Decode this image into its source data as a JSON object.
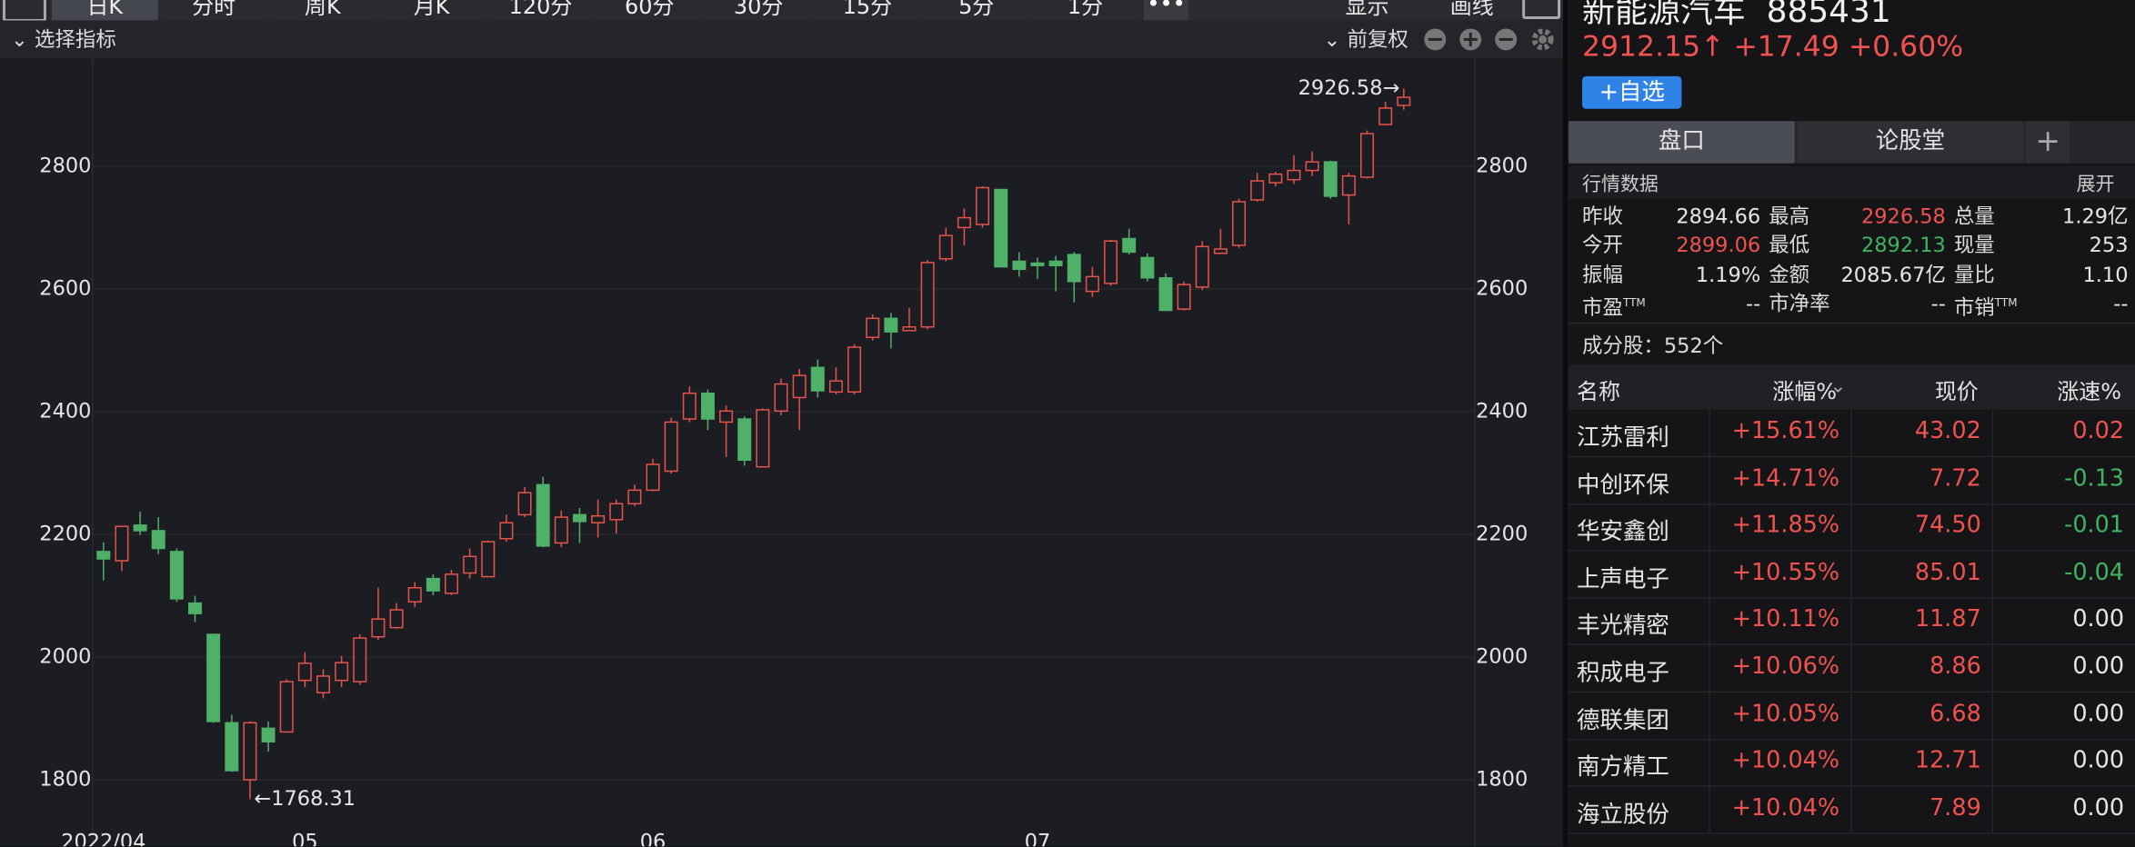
{
  "toolbar": {
    "tabs": [
      "日K",
      "分时",
      "周K",
      "月K",
      "120分",
      "60分",
      "30分",
      "15分",
      "5分",
      "1分"
    ],
    "right": [
      "显示",
      "画线"
    ]
  },
  "indicator_select": "选择指标",
  "adjust": "前复权",
  "chart_data": {
    "type": "candlestick",
    "categories": [
      "2022/04",
      null,
      null,
      null,
      null,
      null,
      null,
      null,
      null,
      null,
      null,
      "05",
      null,
      null,
      null,
      null,
      null,
      null,
      null,
      null,
      null,
      null,
      null,
      null,
      null,
      null,
      null,
      null,
      null,
      null,
      "06",
      null,
      null,
      null,
      null,
      null,
      null,
      null,
      null,
      null,
      null,
      null,
      null,
      null,
      null,
      null,
      null,
      null,
      null,
      null,
      null,
      "07",
      null,
      null,
      null,
      null,
      null,
      null,
      null,
      null,
      null,
      null,
      null,
      null,
      null,
      null,
      null,
      null,
      null,
      null,
      null,
      null
    ],
    "open": [
      2172,
      2157,
      2215,
      2206,
      2172,
      2088,
      2037,
      1893,
      1800,
      1884,
      1878,
      1962,
      1942,
      1962,
      1960,
      2033,
      2048,
      2090,
      2128,
      2104,
      2137,
      2131,
      2193,
      2232,
      2281,
      2186,
      2232,
      2219,
      2224,
      2250,
      2272,
      2303,
      2388,
      2430,
      2383,
      2388,
      2310,
      2401,
      2423,
      2472,
      2432,
      2432,
      2521,
      2552,
      2532,
      2538,
      2649,
      2700,
      2705,
      2762,
      2645,
      2642,
      2645,
      2656,
      2596,
      2609,
      2682,
      2651,
      2618,
      2567,
      2603,
      2658,
      2671,
      2745,
      2773,
      2778,
      2793,
      2807,
      2753,
      2782,
      2868,
      2899.06
    ],
    "high": [
      2187,
      2214,
      2237,
      2228,
      2177,
      2100,
      2037,
      1906,
      1895,
      1895,
      1964,
      2008,
      1980,
      2002,
      2037,
      2113,
      2088,
      2122,
      2135,
      2142,
      2177,
      2190,
      2232,
      2277,
      2294,
      2239,
      2243,
      2257,
      2257,
      2281,
      2323,
      2390,
      2441,
      2436,
      2410,
      2392,
      2405,
      2454,
      2470,
      2485,
      2472,
      2510,
      2558,
      2561,
      2569,
      2647,
      2700,
      2731,
      2767,
      2762,
      2660,
      2651,
      2654,
      2660,
      2636,
      2680,
      2698,
      2658,
      2625,
      2612,
      2678,
      2698,
      2747,
      2789,
      2791,
      2818,
      2824,
      2809,
      2789,
      2858,
      2905,
      2926.58
    ],
    "low": [
      2125,
      2140,
      2199,
      2168,
      2090,
      2057,
      1893,
      1813,
      1768.31,
      1846,
      1877,
      1951,
      1933,
      1951,
      1955,
      2028,
      2046,
      2081,
      2101,
      2101,
      2128,
      2130,
      2188,
      2228,
      2179,
      2179,
      2186,
      2195,
      2201,
      2246,
      2270,
      2299,
      2383,
      2370,
      2326,
      2312,
      2310,
      2394,
      2370,
      2423,
      2428,
      2428,
      2516,
      2503,
      2532,
      2534,
      2645,
      2671,
      2700,
      2636,
      2620,
      2616,
      2596,
      2578,
      2587,
      2605,
      2656,
      2612,
      2565,
      2565,
      2598,
      2658,
      2667,
      2742,
      2767,
      2771,
      2784,
      2747,
      2705,
      2780,
      2867,
      2892.13
    ],
    "close": [
      2160,
      2213,
      2206,
      2177,
      2095,
      2071,
      1895,
      1815,
      1893,
      1862,
      1960,
      1990,
      1969,
      1991,
      2031,
      2062,
      2077,
      2113,
      2108,
      2135,
      2164,
      2188,
      2219,
      2268,
      2181,
      2228,
      2221,
      2230,
      2250,
      2272,
      2314,
      2383,
      2430,
      2388,
      2401,
      2321,
      2403,
      2445,
      2459,
      2434,
      2450,
      2505,
      2552,
      2530,
      2538,
      2643,
      2687,
      2716,
      2765,
      2636,
      2632,
      2638,
      2638,
      2612,
      2620,
      2678,
      2660,
      2618,
      2565,
      2607,
      2669,
      2665,
      2742,
      2776,
      2787,
      2793,
      2807,
      2751,
      2784,
      2853,
      2894.66,
      2912.15
    ],
    "up_color": "#e5534b",
    "down_color": "#4fb068",
    "high_label": "2926.58→",
    "low_label": "←1768.31",
    "ylim": [
      1718,
      2971
    ],
    "yticks": [
      1800,
      2000,
      2200,
      2400,
      2600,
      2800
    ],
    "grid": true
  },
  "quote": {
    "name": "新能源汽车",
    "code": "885431",
    "price": "2912.15↑",
    "change": "+17.49",
    "change_pct": "+0.60%",
    "watch_button": "+自选"
  },
  "tabs": [
    "盘口",
    "论股堂"
  ],
  "market": {
    "title": "行情数据",
    "expand": "展开",
    "rows": [
      [
        {
          "label": "昨收",
          "value": "2894.66"
        },
        {
          "label": "最高",
          "value": "2926.58",
          "color": "#f0524f"
        },
        {
          "label": "总量",
          "value": "1.29亿"
        }
      ],
      [
        {
          "label": "今开",
          "value": "2899.06",
          "color": "#f0524f"
        },
        {
          "label": "最低",
          "value": "2892.13",
          "color": "#3fb35f"
        },
        {
          "label": "现量",
          "value": "253"
        }
      ],
      [
        {
          "label": "振幅",
          "value": "1.19%"
        },
        {
          "label": "金额",
          "value": "2085.67亿"
        },
        {
          "label": "量比",
          "value": "1.10"
        }
      ],
      [
        {
          "label": "市盈",
          "sup": "TTM",
          "value": "--"
        },
        {
          "label": "市净率",
          "value": "--"
        },
        {
          "label": "市销",
          "sup": "TTM",
          "value": "--"
        }
      ]
    ]
  },
  "constituents": "成分股：552个",
  "table": {
    "columns": [
      "名称",
      "涨幅%",
      "现价",
      "涨速%"
    ],
    "rows": [
      [
        "江苏雷利",
        "+15.61%",
        "43.02",
        "0.02"
      ],
      [
        "中创环保",
        "+14.71%",
        "7.72",
        "-0.13"
      ],
      [
        "华安鑫创",
        "+11.85%",
        "74.50",
        "-0.01"
      ],
      [
        "上声电子",
        "+10.55%",
        "85.01",
        "-0.04"
      ],
      [
        "丰光精密",
        "+10.11%",
        "11.87",
        "0.00"
      ],
      [
        "积成电子",
        "+10.06%",
        "8.86",
        "0.00"
      ],
      [
        "德联集团",
        "+10.05%",
        "6.68",
        "0.00"
      ],
      [
        "南方精工",
        "+10.04%",
        "12.71",
        "0.00"
      ],
      [
        "海立股份",
        "+10.04%",
        "7.89",
        "0.00"
      ]
    ]
  }
}
